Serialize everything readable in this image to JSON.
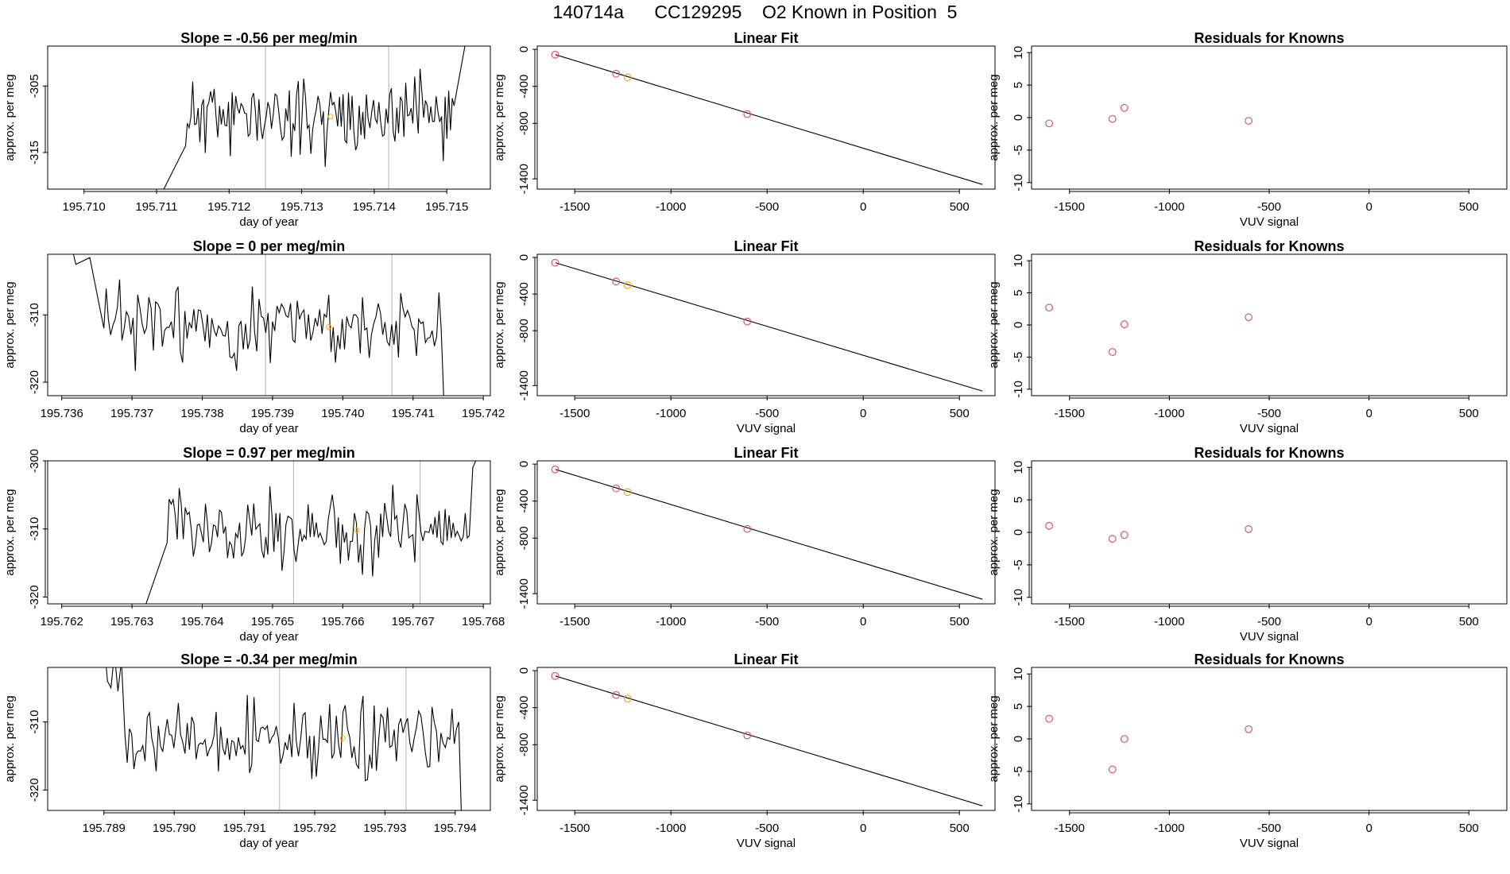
{
  "page_title": "140714a      CC129295    O2 Known in Position  5",
  "colors": {
    "axes": "#000000",
    "series": "#000000",
    "marker": "#FFA500",
    "vline": "#BEBEBE",
    "known": "#DF536B"
  },
  "chart_data": [
    {
      "type": "line",
      "row": 1,
      "col": 1,
      "title": "Slope =  -0.56  per meg/min",
      "xlabel": "day of year",
      "ylabel": "approx. per meg",
      "xlim": [
        195.7095,
        195.7156
      ],
      "ylim": [
        -320.5,
        -299.0
      ],
      "xticks": [
        195.71,
        195.711,
        195.712,
        195.713,
        195.714,
        195.715
      ],
      "xtick_labels": [
        "195.710",
        "195.711",
        "195.712",
        "195.713",
        "195.714",
        "195.715"
      ],
      "yticks": [
        -305,
        -315
      ],
      "ytick_labels": [
        "-305",
        "-315"
      ],
      "vlines": [
        195.7125,
        195.7142
      ],
      "marker": {
        "x": 195.7134,
        "y": -309.6
      },
      "trace": {
        "start": 195.7095,
        "end": 195.7152,
        "seed": 11,
        "base": -309.5,
        "amp": 4.5,
        "pre": [
          [
            195.7095,
            -320.5
          ],
          [
            195.7105,
            -320.5
          ],
          [
            195.7108,
            -327
          ],
          [
            195.7114,
            -314
          ]
        ],
        "post": [
          [
            195.7151,
            -308
          ],
          [
            195.71525,
            -299
          ],
          [
            195.7156,
            -290
          ]
        ]
      }
    },
    {
      "type": "line",
      "row": 1,
      "col": 2,
      "title": "Linear Fit",
      "xlabel": "",
      "ylabel": "approx. per meg",
      "xlim": [
        -1695,
        685
      ],
      "ylim": [
        -1510,
        35
      ],
      "xticks": [
        -1500,
        -1000,
        -500,
        0,
        500
      ],
      "xtick_labels": [
        "-1500",
        "-1000",
        "-500",
        "0",
        "500"
      ],
      "yticks": [
        0,
        -400,
        -800,
        -1400
      ],
      "ytick_labels": [
        "0",
        "-400",
        "-800",
        "-1400"
      ],
      "fit_line": [
        [
          -1600,
          -58
        ],
        [
          620,
          -1460
        ]
      ],
      "points": [
        {
          "x": -1602,
          "y": -58,
          "known": true
        },
        {
          "x": -1285,
          "y": -263,
          "known": true
        },
        {
          "x": -1225,
          "y": -303,
          "known": false
        },
        {
          "x": -603,
          "y": -700,
          "known": true
        }
      ]
    },
    {
      "type": "scatter",
      "row": 1,
      "col": 3,
      "title": "Residuals for Knowns",
      "xlabel": "VUV signal",
      "ylabel": "approx. per meg",
      "xlim": [
        -1690,
        690
      ],
      "ylim": [
        -11,
        11
      ],
      "xticks": [
        -1500,
        -1000,
        -500,
        0,
        500
      ],
      "xtick_labels": [
        "-1500",
        "-1000",
        "-500",
        "0",
        "500"
      ],
      "yticks": [
        10,
        5,
        0,
        -5,
        -10
      ],
      "ytick_labels": [
        "10",
        "5",
        "0",
        "-5",
        "-10"
      ],
      "points": [
        {
          "x": -1602,
          "y": -0.9
        },
        {
          "x": -1285,
          "y": -0.2
        },
        {
          "x": -1225,
          "y": 1.5
        },
        {
          "x": -603,
          "y": -0.5
        }
      ]
    },
    {
      "type": "line",
      "row": 2,
      "col": 1,
      "title": "Slope =  0  per meg/min",
      "xlabel": "day of year",
      "ylabel": "approx. per meg",
      "xlim": [
        195.7358,
        195.7421
      ],
      "ylim": [
        -322,
        -301
      ],
      "xticks": [
        195.736,
        195.737,
        195.738,
        195.739,
        195.74,
        195.741,
        195.742
      ],
      "xtick_labels": [
        "195.736",
        "195.737",
        "195.738",
        "195.739",
        "195.740",
        "195.741",
        "195.742"
      ],
      "yticks": [
        -310,
        -320
      ],
      "ytick_labels": [
        "-310",
        "-320"
      ],
      "vlines": [
        195.7389,
        195.7407
      ],
      "marker": {
        "x": 195.7398,
        "y": -311.8
      },
      "trace": {
        "start": 195.7366,
        "end": 195.7414,
        "seed": 23,
        "base": -311.5,
        "amp": 4.5,
        "pre": [
          [
            195.7361,
            -298
          ],
          [
            195.7362,
            -302.5
          ],
          [
            195.7364,
            -301.5
          ],
          [
            195.7366,
            -312
          ]
        ],
        "post": [
          [
            195.7414,
            -312
          ],
          [
            195.74145,
            -326
          ]
        ]
      }
    },
    {
      "type": "line",
      "row": 2,
      "col": 2,
      "title": "Linear Fit",
      "xlabel": "VUV signal",
      "ylabel": "approx. per meg",
      "xlim": [
        -1695,
        685
      ],
      "ylim": [
        -1510,
        35
      ],
      "xticks": [
        -1500,
        -1000,
        -500,
        0,
        500
      ],
      "xtick_labels": [
        "-1500",
        "-1000",
        "-500",
        "0",
        "500"
      ],
      "yticks": [
        0,
        -400,
        -800,
        -1400
      ],
      "ytick_labels": [
        "0",
        "-400",
        "-800",
        "-1400"
      ],
      "fit_line": [
        [
          -1600,
          -58
        ],
        [
          620,
          -1460
        ]
      ],
      "points": [
        {
          "x": -1602,
          "y": -58,
          "known": true
        },
        {
          "x": -1285,
          "y": -263,
          "known": true
        },
        {
          "x": -1225,
          "y": -303,
          "known": false
        },
        {
          "x": -603,
          "y": -700,
          "known": true
        }
      ]
    },
    {
      "type": "scatter",
      "row": 2,
      "col": 3,
      "title": "Residuals for Knowns",
      "xlabel": "VUV signal",
      "ylabel": "approx. per meg",
      "xlim": [
        -1690,
        690
      ],
      "ylim": [
        -11,
        11
      ],
      "xticks": [
        -1500,
        -1000,
        -500,
        0,
        500
      ],
      "xtick_labels": [
        "-1500",
        "-1000",
        "-500",
        "0",
        "500"
      ],
      "yticks": [
        10,
        5,
        0,
        -5,
        -10
      ],
      "ytick_labels": [
        "10",
        "5",
        "0",
        "-5",
        "-10"
      ],
      "points": [
        {
          "x": -1602,
          "y": 2.7
        },
        {
          "x": -1285,
          "y": -4.2
        },
        {
          "x": -1225,
          "y": 0.1
        },
        {
          "x": -603,
          "y": 1.2
        }
      ]
    },
    {
      "type": "line",
      "row": 3,
      "col": 1,
      "title": "Slope =  0.97  per meg/min",
      "xlabel": "day of year",
      "ylabel": "approx. per meg",
      "xlim": [
        195.7618,
        195.7681
      ],
      "ylim": [
        -321,
        -300
      ],
      "xticks": [
        195.762,
        195.763,
        195.764,
        195.765,
        195.766,
        195.767,
        195.768
      ],
      "xtick_labels": [
        "195.762",
        "195.763",
        "195.764",
        "195.765",
        "195.766",
        "195.767",
        "195.768"
      ],
      "yticks": [
        -300,
        -310,
        -320
      ],
      "ytick_labels": [
        "-300",
        "-310",
        "-320"
      ],
      "vlines": [
        195.7653,
        195.7671
      ],
      "marker": {
        "x": 195.7662,
        "y": -310.2
      },
      "trace": {
        "start": 195.7635,
        "end": 195.7678,
        "seed": 37,
        "base": -310.2,
        "amp": 4.5,
        "pre": [
          [
            195.7631,
            -324
          ],
          [
            195.7633,
            -318
          ],
          [
            195.7635,
            -312
          ]
        ],
        "post": [
          [
            195.7678,
            -311
          ],
          [
            195.76785,
            -301
          ],
          [
            195.7681,
            -295
          ]
        ]
      }
    },
    {
      "type": "line",
      "row": 3,
      "col": 2,
      "title": "Linear Fit",
      "xlabel": "",
      "ylabel": "approx. per meg",
      "xlim": [
        -1695,
        685
      ],
      "ylim": [
        -1510,
        35
      ],
      "xticks": [
        -1500,
        -1000,
        -500,
        0,
        500
      ],
      "xtick_labels": [
        "-1500",
        "-1000",
        "-500",
        "0",
        "500"
      ],
      "yticks": [
        0,
        -400,
        -800,
        -1400
      ],
      "ytick_labels": [
        "0",
        "-400",
        "-800",
        "-1400"
      ],
      "fit_line": [
        [
          -1600,
          -58
        ],
        [
          620,
          -1460
        ]
      ],
      "points": [
        {
          "x": -1602,
          "y": -58,
          "known": true
        },
        {
          "x": -1285,
          "y": -263,
          "known": true
        },
        {
          "x": -1225,
          "y": -303,
          "known": false
        },
        {
          "x": -603,
          "y": -700,
          "known": true
        }
      ]
    },
    {
      "type": "scatter",
      "row": 3,
      "col": 3,
      "title": "Residuals for Knowns",
      "xlabel": "VUV signal",
      "ylabel": "approx. per meg",
      "xlim": [
        -1690,
        690
      ],
      "ylim": [
        -11,
        11
      ],
      "xticks": [
        -1500,
        -1000,
        -500,
        0,
        500
      ],
      "xtick_labels": [
        "-1500",
        "-1000",
        "-500",
        "0",
        "500"
      ],
      "yticks": [
        10,
        5,
        0,
        -5,
        -10
      ],
      "ytick_labels": [
        "10",
        "5",
        "0",
        "-5",
        "-10"
      ],
      "points": [
        {
          "x": -1602,
          "y": 1.0
        },
        {
          "x": -1285,
          "y": -1.0
        },
        {
          "x": -1225,
          "y": -0.4
        },
        {
          "x": -603,
          "y": 0.5
        }
      ]
    },
    {
      "type": "line",
      "row": 4,
      "col": 1,
      "title": "Slope =  -0.34  per meg/min",
      "xlabel": "day of year",
      "ylabel": "approx. per meg",
      "xlim": [
        195.7882,
        195.7945
      ],
      "ylim": [
        -323,
        -302
      ],
      "xticks": [
        195.789,
        195.79,
        195.791,
        195.792,
        195.793,
        195.794
      ],
      "xtick_labels": [
        "195.789",
        "195.790",
        "195.791",
        "195.792",
        "195.793",
        "195.794"
      ],
      "yticks": [
        -310,
        -320
      ],
      "ytick_labels": [
        "-310",
        "-320"
      ],
      "vlines": [
        195.7915,
        195.7933
      ],
      "marker": {
        "x": 195.7924,
        "y": -312.4
      },
      "trace": {
        "start": 195.7893,
        "end": 195.79405,
        "seed": 53,
        "base": -312.6,
        "amp": 4.2,
        "pre": [
          [
            195.789,
            -298
          ],
          [
            195.78905,
            -304
          ],
          [
            195.7891,
            -305
          ],
          [
            195.78915,
            -300
          ],
          [
            195.7892,
            -305.5
          ],
          [
            195.78925,
            -301
          ],
          [
            195.7893,
            -312
          ]
        ],
        "post": [
          [
            195.79405,
            -310
          ],
          [
            195.7941,
            -328
          ]
        ]
      }
    },
    {
      "type": "line",
      "row": 4,
      "col": 2,
      "title": "Linear Fit",
      "xlabel": "VUV signal",
      "ylabel": "approx. per meg",
      "xlim": [
        -1695,
        685
      ],
      "ylim": [
        -1510,
        35
      ],
      "xticks": [
        -1500,
        -1000,
        -500,
        0,
        500
      ],
      "xtick_labels": [
        "-1500",
        "-1000",
        "-500",
        "0",
        "500"
      ],
      "yticks": [
        0,
        -400,
        -800,
        -1400
      ],
      "ytick_labels": [
        "0",
        "-400",
        "-800",
        "-1400"
      ],
      "fit_line": [
        [
          -1600,
          -58
        ],
        [
          620,
          -1460
        ]
      ],
      "points": [
        {
          "x": -1602,
          "y": -58,
          "known": true
        },
        {
          "x": -1285,
          "y": -263,
          "known": true
        },
        {
          "x": -1225,
          "y": -303,
          "known": false
        },
        {
          "x": -603,
          "y": -700,
          "known": true
        }
      ]
    },
    {
      "type": "scatter",
      "row": 4,
      "col": 3,
      "title": "Residuals for Knowns",
      "xlabel": "VUV signal",
      "ylabel": "approx. per meg",
      "xlim": [
        -1690,
        690
      ],
      "ylim": [
        -11,
        11
      ],
      "xticks": [
        -1500,
        -1000,
        -500,
        0,
        500
      ],
      "xtick_labels": [
        "-1500",
        "-1000",
        "-500",
        "0",
        "500"
      ],
      "yticks": [
        10,
        5,
        0,
        -5,
        -10
      ],
      "ytick_labels": [
        "10",
        "5",
        "0",
        "-5",
        "-10"
      ],
      "points": [
        {
          "x": -1602,
          "y": 3.1
        },
        {
          "x": -1285,
          "y": -4.7
        },
        {
          "x": -1225,
          "y": 0.0
        },
        {
          "x": -603,
          "y": 1.5
        }
      ]
    }
  ]
}
